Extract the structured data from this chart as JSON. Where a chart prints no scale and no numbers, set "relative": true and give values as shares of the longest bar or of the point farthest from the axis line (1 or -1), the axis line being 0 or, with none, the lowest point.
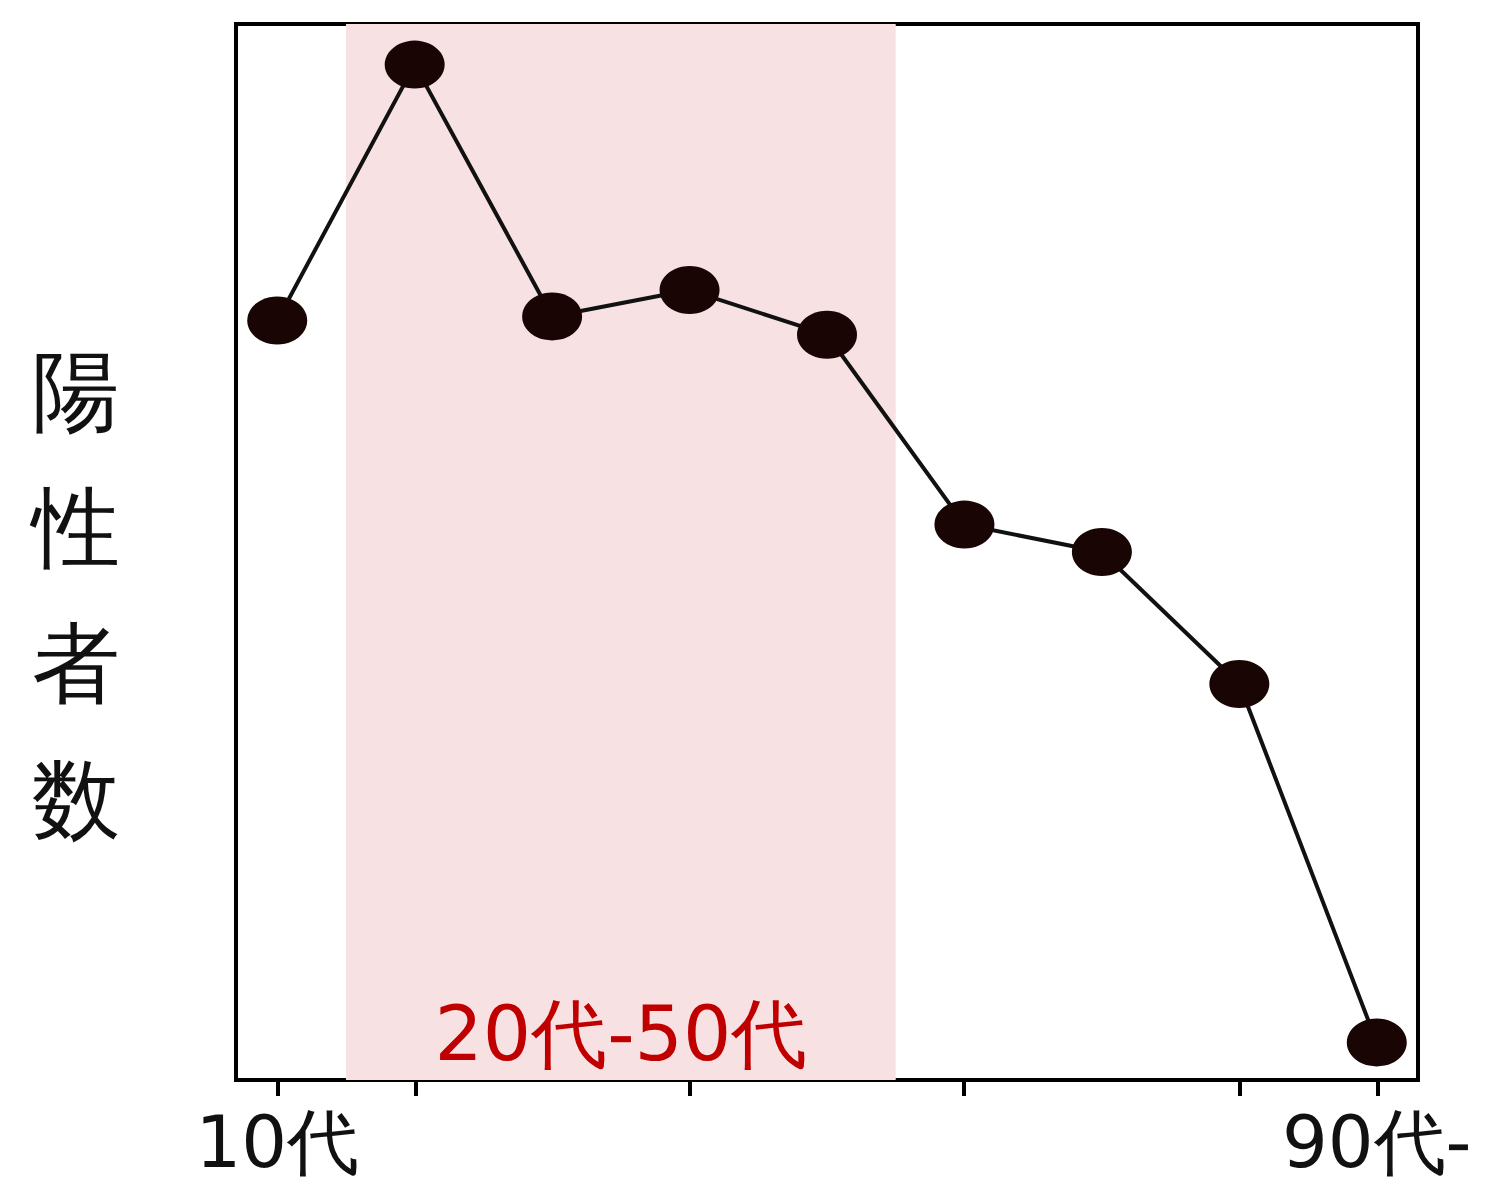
{
  "chart_data": {
    "type": "line",
    "ylabel": "陽性者数",
    "relative": true,
    "x": [
      10,
      20,
      30,
      40,
      50,
      60,
      70,
      80,
      90
    ],
    "series": [
      {
        "color": "#1a0505",
        "values": [
          0.748,
          1,
          0.752,
          0.778,
          0.734,
          0.547,
          0.52,
          0.39,
          0.037
        ]
      }
    ],
    "xlim": [
      7,
      93
    ],
    "xticks": [
      {
        "value": 10,
        "label": "10代"
      },
      {
        "value": 20,
        "label": null
      },
      {
        "value": 40,
        "label": null
      },
      {
        "value": 60,
        "label": null
      },
      {
        "value": 80,
        "label": null
      },
      {
        "value": 90,
        "label": "90代-"
      }
    ],
    "bands": [
      {
        "axis": "x",
        "from": 15,
        "to": 55,
        "label": "20代-50代",
        "color": "#f7e1e3"
      }
    ],
    "marker": "circle",
    "line_style": "solid"
  }
}
